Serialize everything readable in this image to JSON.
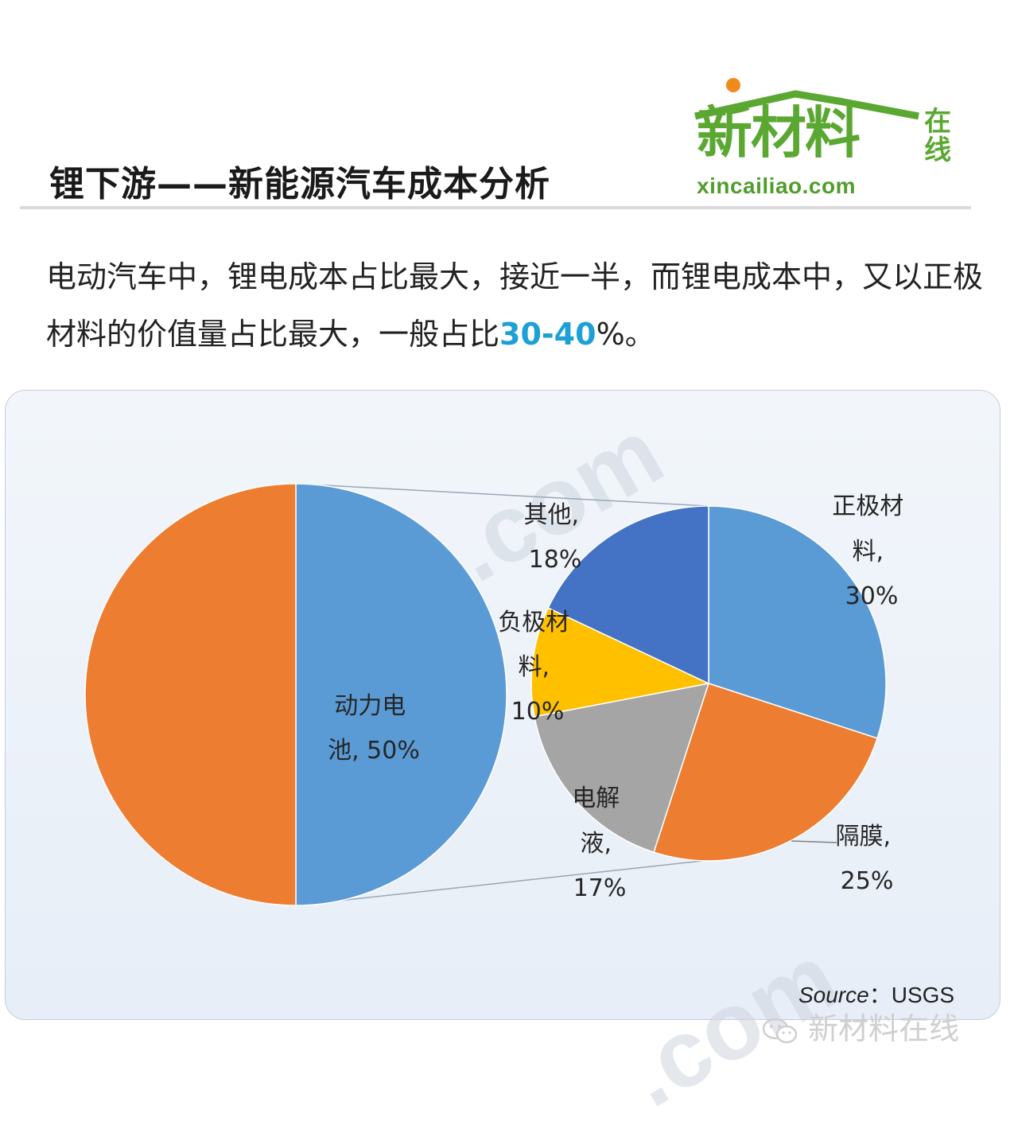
{
  "header": {
    "title": "锂下游——新能源汽车成本分析",
    "logo_cn": "新材料",
    "logo_side": "在线",
    "logo_url": "xincailiao.com"
  },
  "intro": {
    "text_before": "电动汽车中，锂电成本占比最大，接近一半，而锂电成本中，又以正极材料的价值量占比最大，一般占比",
    "highlight": "30-40",
    "text_after": "%。"
  },
  "chart_data": {
    "type": "pie",
    "subtype": "pie-of-pie",
    "title": "",
    "main_pie": {
      "slices": [
        {
          "label": "动力电池, 50%",
          "value": 50,
          "color": "#5b9bd5"
        },
        {
          "label": "",
          "value": 50,
          "color": "#ed7d31"
        }
      ]
    },
    "secondary_pie": {
      "slices": [
        {
          "label": "正极材料, 30%",
          "value": 30,
          "color": "#5b9bd5"
        },
        {
          "label": "隔膜, 25%",
          "value": 25,
          "color": "#ed7d31"
        },
        {
          "label": "电解液, 17%",
          "value": 17,
          "color": "#a5a5a5"
        },
        {
          "label": "负极材料, 10%",
          "value": 10,
          "color": "#ffc000"
        },
        {
          "label": "其他, 18%",
          "value": 18,
          "color": "#4472c4"
        }
      ]
    },
    "labels": {
      "battery": [
        "动力电",
        "池, 50%"
      ],
      "cathode": [
        "正极材",
        "料,",
        "30%"
      ],
      "separator": [
        "隔膜,",
        "25%"
      ],
      "electrolyte": [
        "电解",
        "液,",
        "17%"
      ],
      "anode": [
        "负极材",
        "料,",
        "10%"
      ],
      "other": [
        "其他,",
        "18%"
      ]
    }
  },
  "source": {
    "label": "Source",
    "value": "：USGS"
  },
  "footer": {
    "text": "新材料在线",
    "icon": "wechat-icon"
  },
  "watermark": ".com"
}
